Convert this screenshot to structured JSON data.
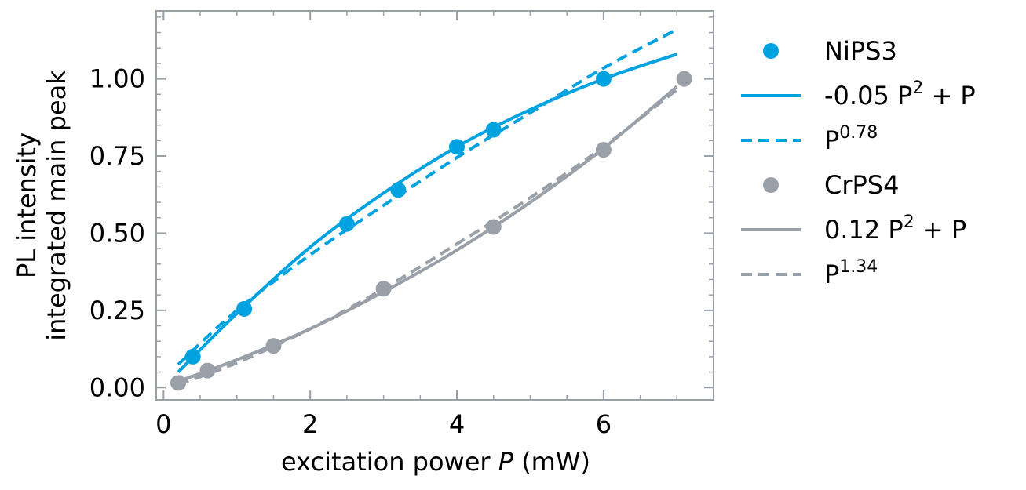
{
  "colors": {
    "blue": "#00a3e0",
    "gray": "#9aa0a8",
    "frame": "#9aa0a8"
  },
  "chart_data": {
    "type": "scatter",
    "xlabel_prefix": "excitation power ",
    "xlabel_var": "P",
    "xlabel_suffix": " (mW)",
    "ylabel_line1": "PL intensity",
    "ylabel_line2": "integrated main peak",
    "xlim": [
      -0.1,
      7.5
    ],
    "ylim": [
      -0.04,
      1.22
    ],
    "xticks": [
      0,
      2,
      4,
      6
    ],
    "xtick_labels": [
      "0",
      "2",
      "4",
      "6"
    ],
    "yticks": [
      0.0,
      0.25,
      0.5,
      0.75,
      1.0
    ],
    "ytick_labels": [
      "0.00",
      "0.25",
      "0.50",
      "0.75",
      "1.00"
    ],
    "legend_position": "outside-right",
    "series": [
      {
        "name": "NiPS3",
        "kind": "points",
        "color": "blue",
        "x": [
          0.4,
          1.1,
          2.5,
          3.2,
          4.0,
          4.5,
          6.0
        ],
        "y": [
          0.1,
          0.255,
          0.53,
          0.64,
          0.78,
          0.835,
          1.0
        ]
      },
      {
        "name": "-0.05 P",
        "name_sup": "2",
        "name_tail": " + P",
        "kind": "line",
        "style": "solid",
        "color": "blue",
        "x": [
          0.2,
          1.0,
          2.0,
          3.0,
          4.0,
          5.0,
          6.0,
          7.0
        ],
        "y": [
          0.05,
          0.24,
          0.455,
          0.63,
          0.78,
          0.9,
          1.0,
          1.08
        ]
      },
      {
        "name": "P",
        "name_sup": "0.78",
        "name_tail": "",
        "kind": "line",
        "style": "dashed",
        "color": "blue",
        "x": [
          0.2,
          1.0,
          2.0,
          3.0,
          4.0,
          5.0,
          6.0,
          7.0
        ],
        "y": [
          0.075,
          0.25,
          0.43,
          0.59,
          0.745,
          0.89,
          1.035,
          1.16
        ]
      },
      {
        "name": "CrPS4",
        "kind": "points",
        "color": "gray",
        "x": [
          0.2,
          0.6,
          1.5,
          3.0,
          4.5,
          6.0,
          7.1
        ],
        "y": [
          0.015,
          0.055,
          0.135,
          0.32,
          0.52,
          0.77,
          1.0
        ]
      },
      {
        "name": "0.12 P",
        "name_sup": "2",
        "name_tail": " + P",
        "kind": "line",
        "style": "solid",
        "color": "gray",
        "x": [
          0.2,
          1.0,
          2.0,
          3.0,
          4.0,
          5.0,
          6.0,
          7.0
        ],
        "y": [
          0.02,
          0.09,
          0.19,
          0.31,
          0.445,
          0.6,
          0.775,
          0.975
        ]
      },
      {
        "name": "P",
        "name_sup": "1.34",
        "name_tail": "",
        "kind": "line",
        "style": "dashed",
        "color": "gray",
        "x": [
          0.2,
          1.0,
          2.0,
          3.0,
          4.0,
          5.0,
          6.0,
          7.0
        ],
        "y": [
          0.01,
          0.08,
          0.19,
          0.32,
          0.465,
          0.615,
          0.78,
          0.965
        ]
      }
    ]
  }
}
